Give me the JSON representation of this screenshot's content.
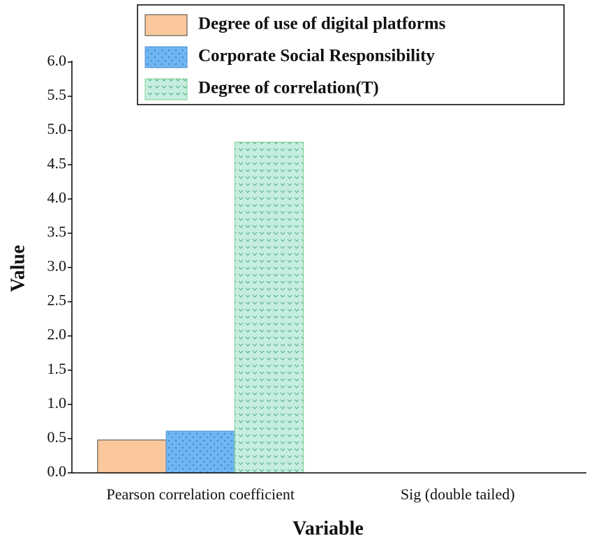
{
  "chart_data": {
    "type": "bar",
    "x_label": "Variable",
    "y_label": "Value",
    "categories": [
      "Pearson correlation coefficient",
      "Sig (double tailed)"
    ],
    "series": [
      {
        "name": "Degree of use of digital platforms",
        "color": "#fbc89d",
        "values": [
          0.48,
          0
        ]
      },
      {
        "name": "Corporate Social Responsibility",
        "color": "#6fb6f0",
        "values": [
          0.61,
          0
        ]
      },
      {
        "name": "Degree of correlation(T)",
        "color": "#c6eee0",
        "values": [
          4.83,
          0
        ]
      }
    ],
    "ylim": [
      0,
      6
    ],
    "yticks": [
      {
        "value": 0,
        "label": "0.0"
      },
      0.5,
      {
        "value": 1,
        "label": "1.0"
      },
      1.5,
      {
        "value": 2,
        "label": "2.0"
      },
      2.5,
      {
        "value": 3,
        "label": "3.0"
      },
      3.5,
      {
        "value": 4,
        "label": "4.0"
      },
      4.5,
      {
        "value": 5,
        "label": "5.0"
      },
      5.5,
      {
        "value": 6,
        "label": "6.0"
      }
    ],
    "legend_position": "top",
    "grid": false
  }
}
